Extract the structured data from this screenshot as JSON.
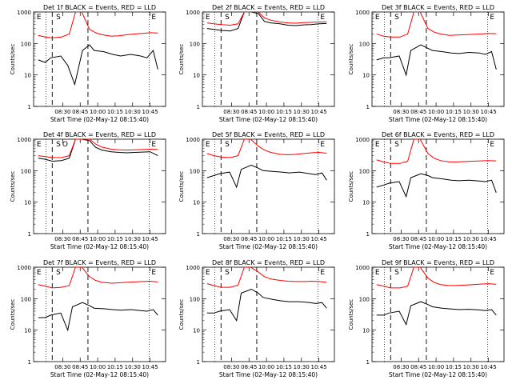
{
  "figure": {
    "xlabel": "Start Time (02-May-12 08:15:40)",
    "ylabel": "Counts/sec",
    "colors": {
      "events": "#000000",
      "lld": "#ff0000",
      "axis": "#000000"
    }
  },
  "chart_data": [
    {
      "type": "line",
      "title": "Det 1f BLACK = Events, RED = LLD",
      "xticks": [
        "08:30",
        "08:45",
        "10:00",
        "10:15",
        "10:30",
        "10:45"
      ],
      "yticks": [
        "1",
        "10",
        "100",
        "1000"
      ],
      "ylog": true,
      "ylim": [
        1,
        1000
      ],
      "markers": [
        "E",
        "S",
        "E"
      ],
      "series": [
        {
          "name": "Events",
          "color": "#000000",
          "x": [
            0.6,
            1.5,
            2.2,
            3.5,
            4.4,
            5.3,
            6.3,
            7.2,
            7.8,
            9.0,
            10.2,
            11.2,
            12.5,
            13.8,
            14.6,
            15.4,
            16.0
          ],
          "y": [
            30,
            25,
            35,
            40,
            20,
            5,
            60,
            90,
            60,
            55,
            45,
            40,
            45,
            40,
            35,
            60,
            15
          ]
        },
        {
          "name": "LLD",
          "color": "#ff0000",
          "x": [
            0.6,
            1.5,
            2.4,
            3.6,
            4.6,
            5.4,
            6.2,
            7.2,
            8.0,
            8.8,
            10.0,
            11.0,
            12.0,
            13.0,
            14.0,
            15.0,
            16.0
          ],
          "y": [
            180,
            160,
            150,
            160,
            200,
            1000,
            1000,
            280,
            220,
            190,
            170,
            175,
            190,
            200,
            210,
            220,
            215
          ]
        }
      ]
    },
    {
      "type": "line",
      "title": "Det 2f BLACK = Events, RED = LLD",
      "xticks": [
        "08:30",
        "08:45",
        "10:00",
        "10:15",
        "10:30",
        "10:45"
      ],
      "yticks": [
        "1",
        "10",
        "100",
        "1000"
      ],
      "ylog": true,
      "ylim": [
        1,
        1000
      ],
      "markers": [
        "E",
        "S",
        "E"
      ],
      "series": [
        {
          "name": "Events",
          "color": "#000000",
          "x": [
            0.6,
            1.5,
            2.4,
            3.6,
            4.6,
            5.4,
            6.2,
            7.2,
            8.0,
            8.8,
            10.0,
            11.0,
            12.0,
            13.0,
            14.0,
            15.0,
            16.0
          ],
          "y": [
            300,
            280,
            260,
            250,
            300,
            1000,
            1000,
            900,
            500,
            450,
            420,
            380,
            370,
            390,
            400,
            420,
            430
          ]
        },
        {
          "name": "LLD",
          "color": "#ff0000",
          "x": [
            0.6,
            1.5,
            2.4,
            3.6,
            4.6,
            5.4,
            6.2,
            7.2,
            8.0,
            8.8,
            10.0,
            11.0,
            12.0,
            13.0,
            14.0,
            15.0,
            16.0
          ],
          "y": [
            450,
            420,
            400,
            380,
            420,
            1000,
            1000,
            1000,
            650,
            550,
            480,
            450,
            440,
            460,
            470,
            480,
            490
          ]
        }
      ]
    },
    {
      "type": "line",
      "title": "Det 3f BLACK = Events, RED = LLD",
      "xticks": [
        "08:30",
        "08:45",
        "10:00",
        "10:15",
        "10:30",
        "10:45"
      ],
      "yticks": [
        "1",
        "10",
        "100",
        "1000"
      ],
      "ylog": true,
      "ylim": [
        1,
        1000
      ],
      "markers": [
        "E",
        "S",
        "E"
      ],
      "series": [
        {
          "name": "Events",
          "color": "#000000",
          "x": [
            0.6,
            1.5,
            2.2,
            3.5,
            4.4,
            5.0,
            6.3,
            7.2,
            7.8,
            9.0,
            10.2,
            11.2,
            12.5,
            13.8,
            14.6,
            15.4,
            16.0
          ],
          "y": [
            30,
            35,
            35,
            40,
            10,
            60,
            90,
            70,
            60,
            55,
            50,
            48,
            52,
            50,
            45,
            55,
            15
          ]
        },
        {
          "name": "LLD",
          "color": "#ff0000",
          "x": [
            0.6,
            1.5,
            2.4,
            3.6,
            4.6,
            5.4,
            6.2,
            7.2,
            8.0,
            8.8,
            10.0,
            11.0,
            12.0,
            13.0,
            14.0,
            15.0,
            16.0
          ],
          "y": [
            200,
            170,
            160,
            160,
            200,
            1000,
            1000,
            300,
            230,
            200,
            180,
            185,
            190,
            195,
            200,
            210,
            205
          ]
        }
      ]
    },
    {
      "type": "line",
      "title": "Det 4f BLACK = Events, RED = LLD",
      "xticks": [
        "08:30",
        "08:45",
        "10:00",
        "10:15",
        "10:30",
        "10:45"
      ],
      "yticks": [
        "1",
        "10",
        "100",
        "1000"
      ],
      "ylog": true,
      "ylim": [
        1,
        1000
      ],
      "markers": [
        "E",
        "S",
        "O",
        "E"
      ],
      "series": [
        {
          "name": "Events",
          "color": "#000000",
          "x": [
            0.6,
            1.5,
            2.4,
            3.6,
            4.6,
            5.4,
            6.2,
            7.2,
            8.0,
            8.8,
            10.0,
            11.0,
            12.0,
            13.0,
            14.0,
            15.0,
            16.0
          ],
          "y": [
            250,
            230,
            200,
            210,
            250,
            1000,
            1000,
            900,
            550,
            450,
            400,
            380,
            370,
            380,
            390,
            400,
            300
          ]
        },
        {
          "name": "LLD",
          "color": "#ff0000",
          "x": [
            0.6,
            1.5,
            2.4,
            3.6,
            4.6,
            5.4,
            6.2,
            7.2,
            8.0,
            8.8,
            10.0,
            11.0,
            12.0,
            13.0,
            14.0,
            15.0,
            16.0
          ],
          "y": [
            300,
            280,
            260,
            260,
            300,
            1000,
            1000,
            1000,
            700,
            560,
            480,
            460,
            450,
            460,
            470,
            480,
            470
          ]
        }
      ]
    },
    {
      "type": "line",
      "title": "Det 5f BLACK = Events, RED = LLD",
      "xticks": [
        "08:30",
        "08:45",
        "10:00",
        "10:15",
        "10:30",
        "10:45"
      ],
      "yticks": [
        "1",
        "10",
        "100",
        "1000"
      ],
      "ylog": true,
      "ylim": [
        1,
        1000
      ],
      "markers": [
        "E",
        "S",
        "E"
      ],
      "series": [
        {
          "name": "Events",
          "color": "#000000",
          "x": [
            0.6,
            1.5,
            2.2,
            3.5,
            4.4,
            5.0,
            6.3,
            7.2,
            7.8,
            9.0,
            10.2,
            11.2,
            12.5,
            13.8,
            14.6,
            15.4,
            16.0
          ],
          "y": [
            60,
            70,
            80,
            90,
            30,
            110,
            150,
            120,
            100,
            95,
            90,
            85,
            90,
            80,
            75,
            85,
            50
          ]
        },
        {
          "name": "LLD",
          "color": "#ff0000",
          "x": [
            0.6,
            1.5,
            2.4,
            3.6,
            4.6,
            5.4,
            6.2,
            7.2,
            8.0,
            8.8,
            10.0,
            11.0,
            12.0,
            13.0,
            14.0,
            15.0,
            16.0
          ],
          "y": [
            350,
            300,
            270,
            260,
            300,
            1000,
            1000,
            600,
            450,
            380,
            330,
            320,
            330,
            350,
            370,
            380,
            360
          ]
        }
      ]
    },
    {
      "type": "line",
      "title": "Det 6f BLACK = Events, RED = LLD",
      "xticks": [
        "08:30",
        "08:45",
        "10:00",
        "10:15",
        "10:30",
        "10:45"
      ],
      "yticks": [
        "1",
        "10",
        "100",
        "1000"
      ],
      "ylog": true,
      "ylim": [
        1,
        1000
      ],
      "markers": [
        "E",
        "S",
        "E"
      ],
      "series": [
        {
          "name": "Events",
          "color": "#000000",
          "x": [
            0.6,
            1.5,
            2.2,
            3.5,
            4.4,
            5.0,
            6.3,
            7.2,
            7.8,
            9.0,
            10.2,
            11.2,
            12.5,
            13.8,
            14.6,
            15.4,
            16.0
          ],
          "y": [
            30,
            35,
            40,
            45,
            15,
            60,
            80,
            70,
            60,
            55,
            50,
            48,
            50,
            47,
            45,
            50,
            20
          ]
        },
        {
          "name": "LLD",
          "color": "#ff0000",
          "x": [
            0.6,
            1.5,
            2.4,
            3.6,
            4.6,
            5.4,
            6.2,
            7.2,
            8.0,
            8.8,
            10.0,
            11.0,
            12.0,
            13.0,
            14.0,
            15.0,
            16.0
          ],
          "y": [
            220,
            190,
            170,
            170,
            200,
            1000,
            1000,
            350,
            250,
            210,
            190,
            190,
            195,
            200,
            205,
            210,
            205
          ]
        }
      ]
    },
    {
      "type": "line",
      "title": "Det 7f BLACK = Events, RED = LLD",
      "xticks": [
        "08:30",
        "08:45",
        "10:00",
        "10:15",
        "10:30",
        "10:45"
      ],
      "yticks": [
        "1",
        "10",
        "100",
        "1000"
      ],
      "ylog": true,
      "ylim": [
        1,
        1000
      ],
      "markers": [
        "E",
        "S",
        "E"
      ],
      "series": [
        {
          "name": "Events",
          "color": "#000000",
          "x": [
            0.6,
            1.5,
            2.2,
            3.5,
            4.4,
            5.0,
            6.3,
            7.2,
            7.8,
            9.0,
            10.2,
            11.2,
            12.5,
            13.8,
            14.6,
            15.4,
            16.0
          ],
          "y": [
            25,
            25,
            30,
            35,
            10,
            55,
            75,
            60,
            50,
            48,
            45,
            43,
            45,
            42,
            40,
            45,
            30
          ]
        },
        {
          "name": "LLD",
          "color": "#ff0000",
          "x": [
            0.6,
            1.5,
            2.4,
            3.6,
            4.6,
            5.4,
            6.2,
            7.2,
            8.0,
            8.8,
            10.0,
            11.0,
            12.0,
            13.0,
            14.0,
            15.0,
            16.0
          ],
          "y": [
            280,
            250,
            220,
            230,
            260,
            1000,
            1000,
            500,
            380,
            330,
            310,
            320,
            330,
            340,
            350,
            360,
            340
          ]
        }
      ]
    },
    {
      "type": "line",
      "title": "Det 8f BLACK = Events, RED = LLD",
      "xticks": [
        "08:30",
        "08:45",
        "10:00",
        "10:15",
        "10:30",
        "10:45"
      ],
      "yticks": [
        "1",
        "10",
        "100",
        "1000"
      ],
      "ylog": true,
      "ylim": [
        1,
        1000
      ],
      "markers": [
        "E",
        "S",
        "E"
      ],
      "series": [
        {
          "name": "Events",
          "color": "#000000",
          "x": [
            0.6,
            1.5,
            2.2,
            3.5,
            4.4,
            5.0,
            6.3,
            7.2,
            7.8,
            9.0,
            10.2,
            11.2,
            12.5,
            13.8,
            14.6,
            15.4,
            16.0
          ],
          "y": [
            35,
            35,
            40,
            45,
            20,
            150,
            200,
            150,
            110,
            95,
            85,
            80,
            80,
            75,
            70,
            75,
            50
          ]
        },
        {
          "name": "LLD",
          "color": "#ff0000",
          "x": [
            0.6,
            1.5,
            2.4,
            3.6,
            4.6,
            5.4,
            6.2,
            7.2,
            8.0,
            8.8,
            10.0,
            11.0,
            12.0,
            13.0,
            14.0,
            15.0,
            16.0
          ],
          "y": [
            300,
            260,
            230,
            230,
            270,
            1000,
            1000,
            700,
            500,
            420,
            380,
            360,
            350,
            350,
            360,
            350,
            330
          ]
        }
      ]
    },
    {
      "type": "line",
      "title": "Det 9f BLACK = Events, RED = LLD",
      "xticks": [
        "08:30",
        "08:45",
        "10:00",
        "10:15",
        "10:30",
        "10:45"
      ],
      "yticks": [
        "1",
        "10",
        "100",
        "1000"
      ],
      "ylog": true,
      "ylim": [
        1,
        1000
      ],
      "markers": [
        "E",
        "S",
        "E"
      ],
      "series": [
        {
          "name": "Events",
          "color": "#000000",
          "x": [
            0.6,
            1.5,
            2.2,
            3.5,
            4.4,
            5.0,
            6.3,
            7.2,
            7.8,
            9.0,
            10.2,
            11.2,
            12.5,
            13.8,
            14.6,
            15.4,
            16.0
          ],
          "y": [
            30,
            30,
            35,
            40,
            15,
            60,
            80,
            65,
            55,
            50,
            47,
            45,
            46,
            44,
            42,
            45,
            30
          ]
        },
        {
          "name": "LLD",
          "color": "#ff0000",
          "x": [
            0.6,
            1.5,
            2.4,
            3.6,
            4.6,
            5.4,
            6.2,
            7.2,
            8.0,
            8.8,
            10.0,
            11.0,
            12.0,
            13.0,
            14.0,
            15.0,
            16.0
          ],
          "y": [
            280,
            250,
            220,
            220,
            250,
            1000,
            1000,
            450,
            330,
            280,
            260,
            265,
            270,
            280,
            290,
            300,
            285
          ]
        }
      ]
    }
  ]
}
